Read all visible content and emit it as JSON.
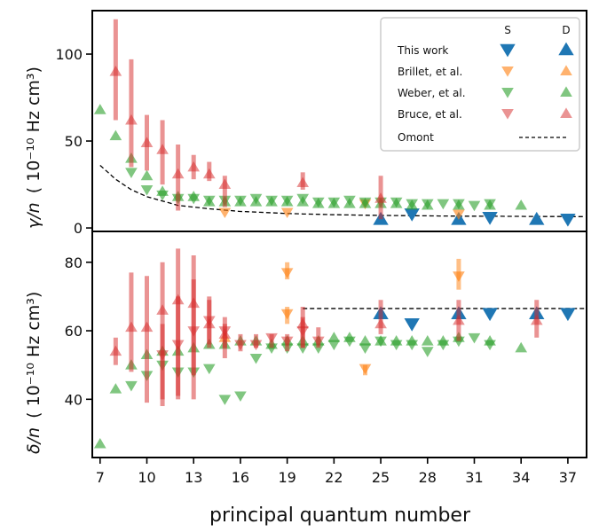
{
  "chart_data": [
    {
      "type": "scatter",
      "panel": "top",
      "ylabel_main": "γ/n",
      "ylabel_units": "( 10⁻¹⁰ Hz cm³)",
      "ylim": [
        -2,
        125
      ],
      "yticks": [
        0,
        50,
        100
      ],
      "xlim": [
        6.5,
        38.2
      ],
      "legend": {
        "placement": "top-right",
        "col_headers": [
          "S",
          "D"
        ],
        "entries": [
          "This work",
          "Brillet, et al.",
          "Weber, et al.",
          "Bruce, et al.",
          "Omont"
        ]
      },
      "series": [
        {
          "name": "This work",
          "state": "S",
          "color": "#1f77b4",
          "alpha": 1.0,
          "points": [
            [
              27,
              8
            ],
            [
              32,
              6
            ],
            [
              37,
              5
            ]
          ]
        },
        {
          "name": "This work",
          "state": "D",
          "color": "#1f77b4",
          "alpha": 1.0,
          "points": [
            [
              25,
              5
            ],
            [
              30,
              5
            ],
            [
              35,
              5
            ]
          ]
        },
        {
          "name": "Brillet, et al.",
          "state": "S",
          "color": "#ff7f0e",
          "alpha": 0.6,
          "points": [
            [
              15,
              9
            ],
            [
              19,
              9
            ],
            [
              24,
              14
            ],
            [
              30,
              8
            ]
          ]
        },
        {
          "name": "Brillet, et al.",
          "state": "D",
          "color": "#ff7f0e",
          "alpha": 0.6,
          "points": []
        },
        {
          "name": "Weber, et al.",
          "state": "S",
          "color": "#2ca02c",
          "alpha": 0.6,
          "points": [
            [
              9,
              32
            ],
            [
              10,
              22
            ],
            [
              11,
              19
            ],
            [
              12,
              17
            ],
            [
              13,
              17
            ],
            [
              14,
              16
            ],
            [
              15,
              16
            ],
            [
              16,
              16
            ],
            [
              17,
              17
            ],
            [
              18,
              16
            ],
            [
              19,
              16
            ],
            [
              20,
              17
            ],
            [
              21,
              15
            ],
            [
              22,
              15
            ],
            [
              23,
              16
            ],
            [
              24,
              15
            ],
            [
              25,
              15
            ],
            [
              26,
              15
            ],
            [
              27,
              14
            ],
            [
              28,
              14
            ],
            [
              29,
              14
            ],
            [
              30,
              14
            ],
            [
              31,
              13
            ],
            [
              32,
              14
            ]
          ]
        },
        {
          "name": "Weber, et al.",
          "state": "D",
          "color": "#2ca02c",
          "alpha": 0.6,
          "points": [
            [
              7,
              68
            ],
            [
              8,
              53
            ],
            [
              9,
              40
            ],
            [
              10,
              30
            ],
            [
              11,
              21
            ],
            [
              12,
              18
            ],
            [
              13,
              18
            ],
            [
              14,
              15
            ],
            [
              15,
              15
            ],
            [
              16,
              15
            ],
            [
              17,
              15
            ],
            [
              18,
              15
            ],
            [
              19,
              15
            ],
            [
              20,
              15
            ],
            [
              21,
              14
            ],
            [
              22,
              14
            ],
            [
              23,
              14
            ],
            [
              24,
              14
            ],
            [
              25,
              14
            ],
            [
              26,
              14
            ],
            [
              27,
              13
            ],
            [
              28,
              13
            ],
            [
              30,
              13
            ],
            [
              32,
              13
            ],
            [
              34,
              13
            ]
          ]
        },
        {
          "name": "Bruce, et al.",
          "state": "S",
          "color": "#d62728",
          "alpha": 0.5,
          "points": []
        },
        {
          "name": "Bruce, et al.",
          "state": "D",
          "color": "#d62728",
          "alpha": 0.5,
          "points": [
            [
              8,
              90,
              62,
              120
            ],
            [
              9,
              62,
              35,
              97
            ],
            [
              10,
              49,
              33,
              65
            ],
            [
              11,
              45,
              25,
              62
            ],
            [
              12,
              31,
              10,
              48
            ],
            [
              13,
              35,
              28,
              42
            ],
            [
              14,
              31,
              27,
              38
            ],
            [
              15,
              25,
              12,
              30
            ],
            [
              20,
              26,
              22,
              32
            ],
            [
              25,
              17,
              5,
              30
            ]
          ]
        }
      ],
      "omont_curve": {
        "n_start": 7,
        "n_end": 38,
        "formula": "gamma ≈ 5.5 + 1550/n^2.1 (approx)",
        "samples": [
          [
            7,
            36
          ],
          [
            8,
            28
          ],
          [
            9,
            22
          ],
          [
            10,
            18
          ],
          [
            12,
            13
          ],
          [
            14,
            11
          ],
          [
            16,
            9.5
          ],
          [
            19,
            8.3
          ],
          [
            22,
            7.6
          ],
          [
            25,
            7.2
          ],
          [
            30,
            6.8
          ],
          [
            38,
            6.5
          ]
        ]
      }
    },
    {
      "type": "scatter",
      "panel": "bottom",
      "ylabel_main": "δ/n",
      "ylabel_units": "( 10⁻¹⁰ Hz cm³)",
      "ylim": [
        23,
        89
      ],
      "yticks": [
        40,
        60,
        80
      ],
      "xlim": [
        6.5,
        38.2
      ],
      "xlabel": "principal quantum number",
      "xticks": [
        7,
        10,
        13,
        16,
        19,
        22,
        25,
        28,
        31,
        34,
        37
      ],
      "series": [
        {
          "name": "This work",
          "state": "S",
          "color": "#1f77b4",
          "alpha": 1.0,
          "points": [
            [
              27,
              62
            ],
            [
              32,
              65
            ],
            [
              37,
              65
            ]
          ]
        },
        {
          "name": "This work",
          "state": "D",
          "color": "#1f77b4",
          "alpha": 1.0,
          "points": [
            [
              25,
              65
            ],
            [
              30,
              65
            ],
            [
              35,
              65
            ]
          ]
        },
        {
          "name": "Brillet, et al.",
          "state": "S",
          "color": "#ff7f0e",
          "alpha": 0.6,
          "points": [
            [
              19,
              77,
              75,
              80
            ],
            [
              19,
              65,
              62,
              67
            ],
            [
              24,
              49,
              47,
              50
            ],
            [
              30,
              76,
              72,
              81
            ]
          ]
        },
        {
          "name": "Brillet, et al.",
          "state": "D",
          "color": "#ff7f0e",
          "alpha": 0.6,
          "points": [
            [
              15,
              58
            ]
          ]
        },
        {
          "name": "Weber, et al.",
          "state": "S",
          "color": "#2ca02c",
          "alpha": 0.6,
          "points": [
            [
              9,
              44
            ],
            [
              10,
              47
            ],
            [
              11,
              50
            ],
            [
              12,
              48
            ],
            [
              13,
              48
            ],
            [
              14,
              49
            ],
            [
              15,
              40
            ],
            [
              16,
              41
            ],
            [
              17,
              52
            ],
            [
              18,
              55
            ],
            [
              19,
              55
            ],
            [
              20,
              55
            ],
            [
              21,
              55
            ],
            [
              22,
              56
            ],
            [
              23,
              57
            ],
            [
              24,
              55
            ],
            [
              25,
              57
            ],
            [
              26,
              56
            ],
            [
              27,
              56
            ],
            [
              28,
              54
            ],
            [
              29,
              56
            ],
            [
              30,
              57
            ],
            [
              31,
              58
            ],
            [
              32,
              56
            ]
          ]
        },
        {
          "name": "Weber, et al.",
          "state": "D",
          "color": "#2ca02c",
          "alpha": 0.6,
          "points": [
            [
              7,
              27
            ],
            [
              8,
              43
            ],
            [
              9,
              50
            ],
            [
              10,
              53
            ],
            [
              11,
              54
            ],
            [
              12,
              54
            ],
            [
              13,
              55
            ],
            [
              14,
              56
            ],
            [
              15,
              56
            ],
            [
              16,
              57
            ],
            [
              17,
              57
            ],
            [
              18,
              56
            ],
            [
              19,
              57
            ],
            [
              20,
              57
            ],
            [
              21,
              57
            ],
            [
              22,
              58
            ],
            [
              23,
              58
            ],
            [
              24,
              57
            ],
            [
              25,
              57
            ],
            [
              26,
              57
            ],
            [
              27,
              57
            ],
            [
              28,
              57
            ],
            [
              29,
              57
            ],
            [
              30,
              58
            ],
            [
              32,
              57
            ],
            [
              34,
              55
            ]
          ]
        },
        {
          "name": "Bruce, et al.",
          "state": "S",
          "color": "#d62728",
          "alpha": 0.5,
          "points": [
            [
              11,
              53,
              40,
              62
            ],
            [
              12,
              56,
              41,
              70
            ],
            [
              13,
              60,
              40,
              75
            ],
            [
              14,
              63,
              56,
              70
            ],
            [
              15,
              60,
              52,
              64
            ],
            [
              16,
              56,
              54,
              59
            ],
            [
              17,
              56,
              55,
              59
            ],
            [
              18,
              58,
              55,
              59
            ],
            [
              19,
              57,
              54,
              59
            ],
            [
              20,
              60,
              55,
              64
            ],
            [
              21,
              57,
              55,
              61
            ]
          ]
        },
        {
          "name": "Bruce, et al.",
          "state": "D",
          "color": "#d62728",
          "alpha": 0.5,
          "points": [
            [
              8,
              54,
              50,
              58
            ],
            [
              9,
              61,
              48,
              77
            ],
            [
              10,
              61,
              39,
              76
            ],
            [
              11,
              66,
              38,
              80
            ],
            [
              12,
              69,
              40,
              84
            ],
            [
              13,
              68,
              47,
              82
            ],
            [
              14,
              62,
              55,
              69
            ],
            [
              15,
              59,
              55,
              62
            ],
            [
              20,
              62,
              55,
              67
            ],
            [
              25,
              62,
              59,
              69
            ],
            [
              30,
              63,
              57,
              69
            ],
            [
              35,
              63,
              58,
              69
            ]
          ]
        }
      ],
      "omont_line": {
        "n_start": 20,
        "n_end": 38.2,
        "value": 66.5
      }
    }
  ]
}
